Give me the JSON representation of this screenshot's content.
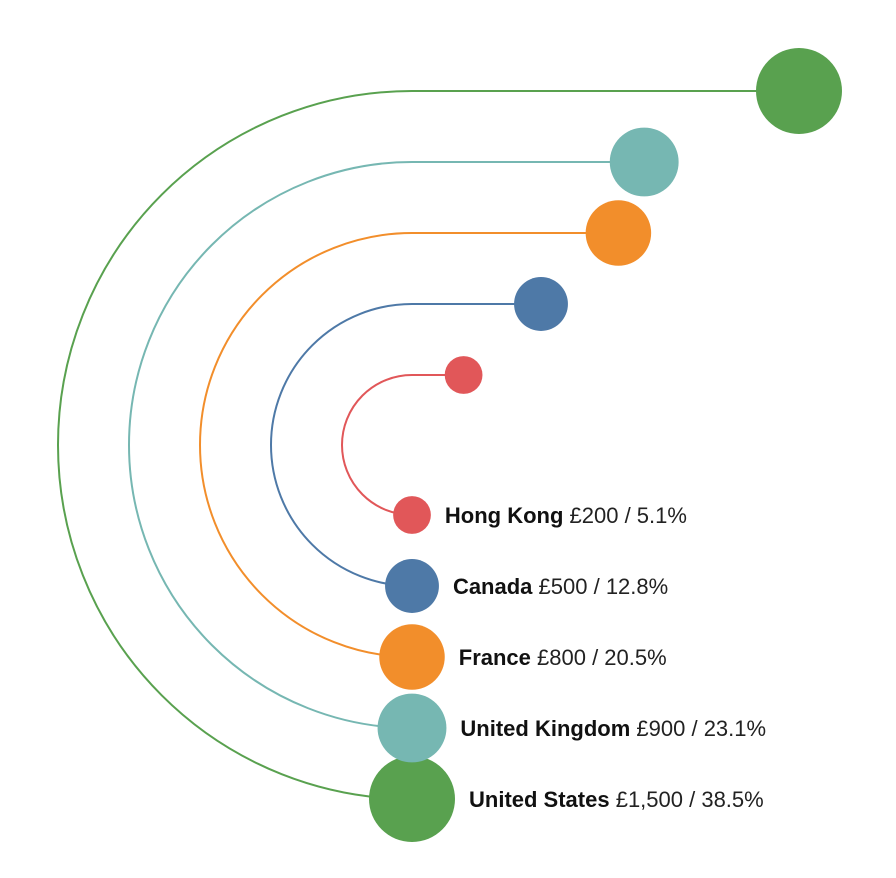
{
  "chart_data": {
    "type": "radial-bar",
    "currency": "£",
    "series": [
      {
        "name": "United States",
        "value": 1500,
        "value_label": "£1,500",
        "percent_label": "38.5%",
        "color": "#59a14f"
      },
      {
        "name": "United Kingdom",
        "value": 900,
        "value_label": "£900",
        "percent_label": "23.1%",
        "color": "#76b7b2"
      },
      {
        "name": "France",
        "value": 800,
        "value_label": "£800",
        "percent_label": "20.5%",
        "color": "#f28e2b"
      },
      {
        "name": "Canada",
        "value": 500,
        "value_label": "£500",
        "percent_label": "12.8%",
        "color": "#4e79a7"
      },
      {
        "name": "Hong Kong",
        "value": 200,
        "value_label": "£200",
        "percent_label": "5.1%",
        "color": "#e15759"
      }
    ],
    "separator": "/"
  }
}
